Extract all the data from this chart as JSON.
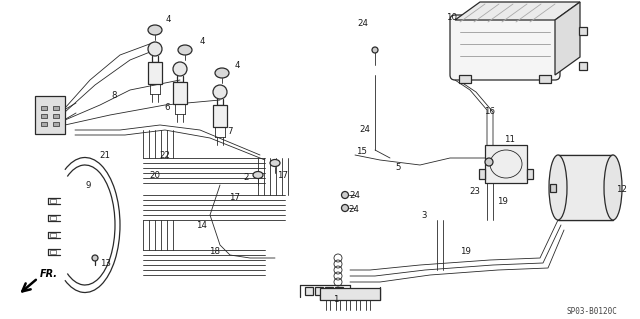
{
  "bg_color": "#ffffff",
  "line_color": "#2a2a2a",
  "label_color": "#1a1a1a",
  "fig_width": 6.4,
  "fig_height": 3.19,
  "dpi": 100,
  "diagram_ref": "SP03-B0120C"
}
